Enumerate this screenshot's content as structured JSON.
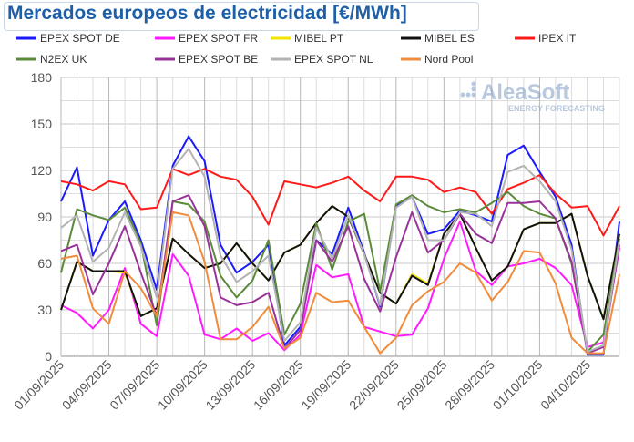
{
  "chart_data": {
    "type": "line",
    "title": "Mercados europeos de electricidad [€/MWh]",
    "xlabel": "",
    "ylabel": "",
    "ylim": [
      0,
      180
    ],
    "yticks": [
      0,
      30,
      60,
      90,
      120,
      150,
      180
    ],
    "grid": true,
    "legend_position": "top",
    "x": [
      "01/09/2025",
      "02/09/2025",
      "03/09/2025",
      "04/09/2025",
      "05/09/2025",
      "06/09/2025",
      "07/09/2025",
      "08/09/2025",
      "09/09/2025",
      "10/09/2025",
      "11/09/2025",
      "12/09/2025",
      "13/09/2025",
      "14/09/2025",
      "15/09/2025",
      "16/09/2025",
      "17/09/2025",
      "18/09/2025",
      "19/09/2025",
      "20/09/2025",
      "21/09/2025",
      "22/09/2025",
      "23/09/2025",
      "24/09/2025",
      "25/09/2025",
      "26/09/2025",
      "27/09/2025",
      "28/09/2025",
      "29/09/2025",
      "30/09/2025",
      "01/10/2025",
      "02/10/2025",
      "03/10/2025",
      "04/10/2025",
      "05/10/2025",
      "06/10/2025"
    ],
    "xtick_labels": [
      "01/09/2025",
      "04/09/2025",
      "07/09/2025",
      "10/09/2025",
      "13/09/2025",
      "16/09/2025",
      "19/09/2025",
      "22/09/2025",
      "25/09/2025",
      "28/09/2025",
      "01/10/2025",
      "04/10/2025"
    ],
    "series": [
      {
        "name": "EPEX SPOT DE",
        "color": "#1a1aff",
        "values": [
          100,
          122,
          65,
          88,
          100,
          75,
          43,
          123,
          142,
          126,
          72,
          54,
          61,
          72,
          7,
          19,
          75,
          66,
          96,
          67,
          32,
          97,
          103,
          79,
          82,
          94,
          91,
          87,
          130,
          136,
          119,
          103,
          72,
          1,
          1,
          87
        ]
      },
      {
        "name": "EPEX SPOT FR",
        "color": "#ff1aff",
        "values": [
          33,
          28,
          18,
          30,
          57,
          21,
          13,
          66,
          52,
          14,
          11,
          18,
          10,
          15,
          4,
          14,
          59,
          51,
          53,
          19,
          16,
          13,
          14,
          31,
          63,
          87,
          55,
          46,
          58,
          60,
          63,
          57,
          46,
          6,
          9,
          70
        ]
      },
      {
        "name": "MIBEL PT",
        "color": "#f2e600",
        "values": [
          30,
          61,
          55,
          55,
          54,
          26,
          31,
          76,
          66,
          57,
          60,
          73,
          60,
          49,
          67,
          72,
          86,
          97,
          90,
          66,
          41,
          34,
          53,
          47,
          79,
          92,
          70,
          49,
          58,
          82,
          86,
          86,
          92,
          52,
          24,
          79
        ]
      },
      {
        "name": "MIBEL ES",
        "color": "#111111",
        "values": [
          30,
          61,
          55,
          55,
          55,
          26,
          31,
          76,
          66,
          57,
          60,
          73,
          60,
          49,
          67,
          72,
          86,
          97,
          90,
          66,
          41,
          34,
          52,
          46,
          79,
          92,
          70,
          49,
          58,
          82,
          86,
          86,
          92,
          52,
          24,
          79
        ]
      },
      {
        "name": "IPEX IT",
        "color": "#ff1a1a",
        "values": [
          113,
          111,
          107,
          113,
          111,
          95,
          96,
          121,
          117,
          121,
          116,
          114,
          103,
          85,
          113,
          111,
          109,
          112,
          116,
          107,
          100,
          116,
          116,
          114,
          106,
          109,
          106,
          92,
          108,
          112,
          117,
          105,
          96,
          97,
          78,
          97
        ]
      },
      {
        "name": "N2EX UK",
        "color": "#5a8a3a",
        "values": [
          54,
          95,
          91,
          88,
          96,
          73,
          20,
          100,
          98,
          87,
          52,
          38,
          49,
          75,
          14,
          34,
          86,
          56,
          87,
          92,
          42,
          98,
          104,
          97,
          93,
          95,
          93,
          99,
          106,
          97,
          92,
          89,
          60,
          3,
          14,
          76
        ]
      },
      {
        "name": "EPEX SPOT BE",
        "color": "#993399",
        "values": [
          68,
          72,
          40,
          60,
          84,
          54,
          26,
          100,
          104,
          84,
          38,
          33,
          35,
          41,
          5,
          17,
          75,
          61,
          84,
          50,
          29,
          64,
          93,
          67,
          75,
          92,
          79,
          73,
          99,
          99,
          100,
          89,
          61,
          2,
          6,
          72
        ]
      },
      {
        "name": "EPEX SPOT NL",
        "color": "#b3b3b3",
        "values": [
          83,
          91,
          61,
          70,
          93,
          71,
          38,
          121,
          134,
          116,
          65,
          48,
          55,
          65,
          10,
          22,
          83,
          63,
          91,
          66,
          33,
          96,
          103,
          75,
          75,
          93,
          92,
          84,
          119,
          123,
          113,
          100,
          69,
          3,
          7,
          75
        ]
      },
      {
        "name": "Nord Pool",
        "color": "#f08c3c",
        "values": [
          63,
          65,
          31,
          21,
          55,
          44,
          26,
          93,
          91,
          61,
          11,
          11,
          19,
          32,
          5,
          12,
          41,
          35,
          36,
          19,
          2,
          12,
          33,
          42,
          48,
          60,
          54,
          36,
          48,
          68,
          67,
          47,
          12,
          2,
          2,
          53
        ]
      }
    ]
  },
  "logo": {
    "name": "AleaSoft",
    "tagline": "ENERGY FORECASTING"
  }
}
